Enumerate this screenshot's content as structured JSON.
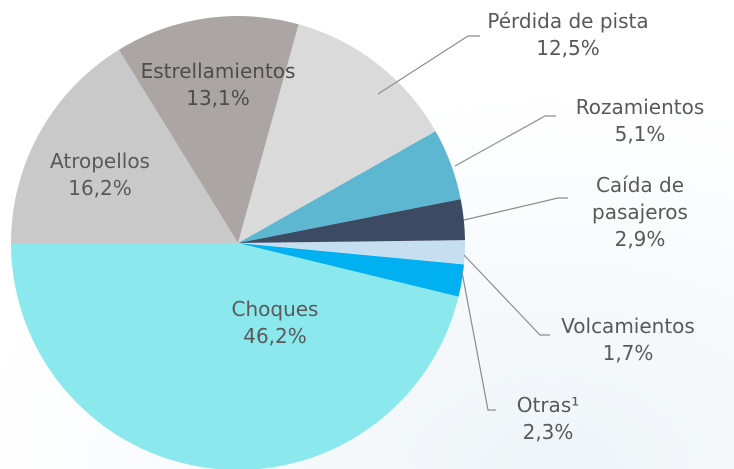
{
  "chart_data": {
    "type": "pie",
    "categories": [
      "Choques",
      "Otras¹",
      "Volcamientos",
      "Caída de pasajeros",
      "Rozamientos",
      "Pérdida de pista",
      "Estrellamientos",
      "Atropellos"
    ],
    "values": [
      46.2,
      2.3,
      1.7,
      2.9,
      5.1,
      12.5,
      13.1,
      16.2
    ],
    "value_labels": [
      "46,2%",
      "2,3%",
      "1,7%",
      "2,9%",
      "5,1%",
      "12,5%",
      "13,1%",
      "16,2%"
    ],
    "colors": [
      "#8be8ec",
      "#00b0f0",
      "#c5def0",
      "#3d4a63",
      "#5db7d1",
      "#dadada",
      "#aba6a3",
      "#c9c9c9"
    ]
  }
}
